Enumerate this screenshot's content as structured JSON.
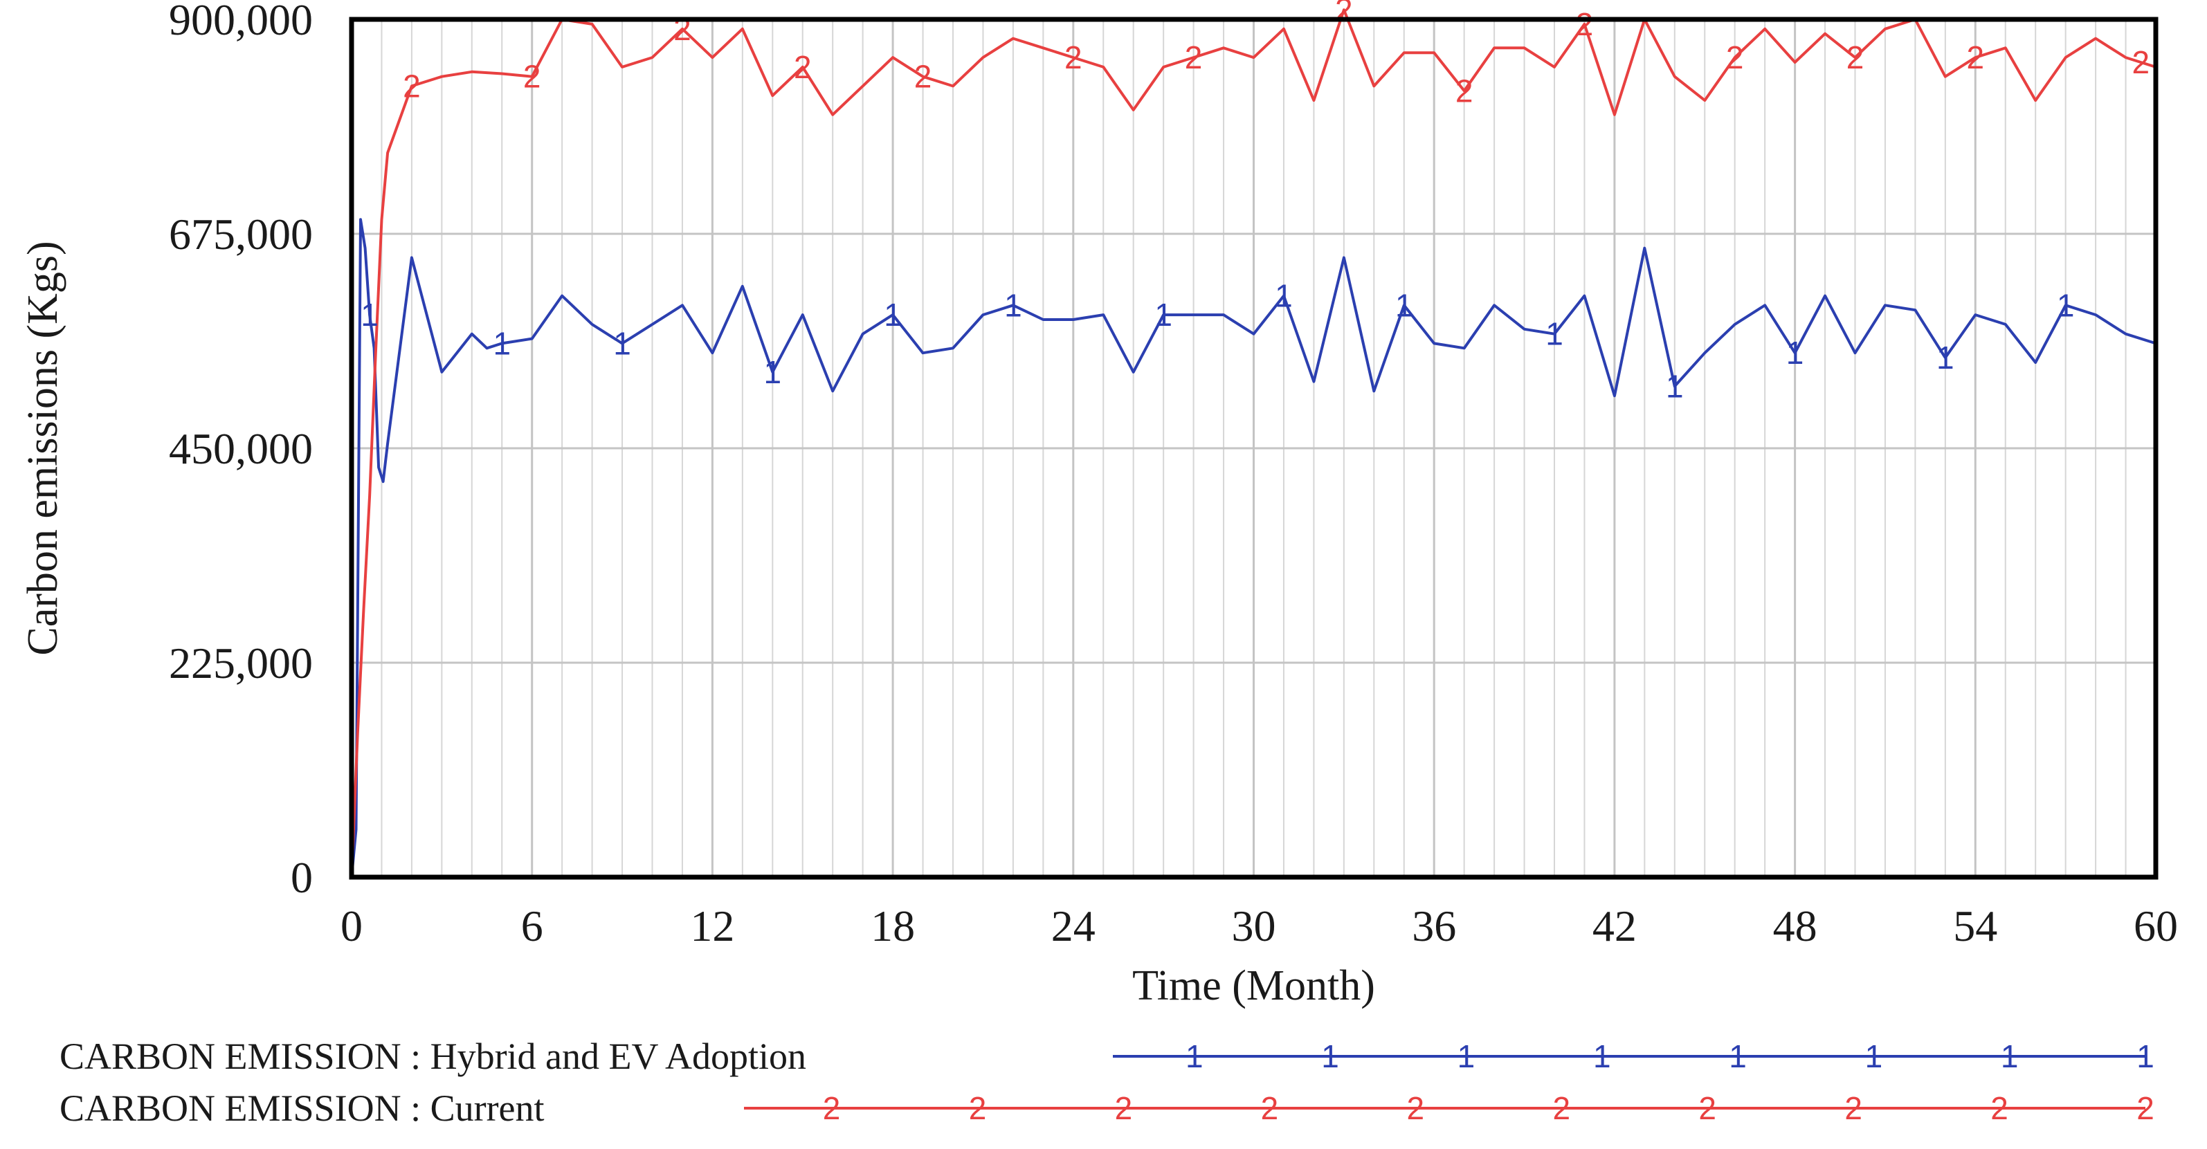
{
  "chart_data": {
    "type": "line",
    "title": "",
    "xlabel": "Time (Month)",
    "ylabel": "Carbon emissions (Kgs)",
    "xlim": [
      0,
      60
    ],
    "ylim": [
      0,
      900000
    ],
    "xticks": [
      0,
      6,
      12,
      18,
      24,
      30,
      36,
      42,
      48,
      54,
      60
    ],
    "xtick_labels": [
      "0",
      "6",
      "12",
      "18",
      "24",
      "30",
      "36",
      "42",
      "48",
      "54",
      "60"
    ],
    "yticks": [
      0,
      225000,
      450000,
      675000,
      900000
    ],
    "ytick_labels": [
      "0",
      "225,000",
      "450,000",
      "675,000",
      "900,000"
    ],
    "grid": true,
    "legend_position": "bottom",
    "series": [
      {
        "name": "CARBON EMISSION : Hybrid and EV Adoption",
        "marker": "1",
        "color": "#2b3fb0",
        "x": [
          0,
          0.15,
          0.3,
          0.45,
          0.6,
          0.75,
          0.9,
          1.05,
          1.2,
          2,
          3,
          4,
          4.5,
          5,
          6,
          7,
          8,
          9,
          10,
          11,
          12,
          13,
          14,
          15,
          16,
          17,
          18,
          19,
          20,
          21,
          22,
          23,
          24,
          25,
          26,
          27,
          28,
          29,
          30,
          31,
          32,
          33,
          34,
          35,
          36,
          37,
          38,
          39,
          40,
          41,
          42,
          43,
          44,
          45,
          46,
          47,
          48,
          49,
          50,
          51,
          52,
          53,
          54,
          55,
          56,
          57,
          58,
          59,
          60
        ],
        "values": [
          0,
          50000,
          690000,
          660000,
          590000,
          555000,
          430000,
          415000,
          455000,
          650000,
          530000,
          570000,
          555000,
          560000,
          565000,
          610000,
          580000,
          560000,
          580000,
          600000,
          550000,
          620000,
          530000,
          590000,
          510000,
          570000,
          590000,
          550000,
          555000,
          590000,
          600000,
          585000,
          585000,
          590000,
          530000,
          590000,
          590000,
          590000,
          570000,
          610000,
          520000,
          650000,
          510000,
          600000,
          560000,
          555000,
          600000,
          575000,
          570000,
          610000,
          505000,
          660000,
          515000,
          550000,
          580000,
          600000,
          550000,
          610000,
          550000,
          600000,
          595000,
          545000,
          590000,
          580000,
          540000,
          600000,
          590000,
          570000,
          560000
        ],
        "marker_x": [
          0.6,
          5,
          9,
          14,
          18,
          22,
          27,
          31,
          35,
          40,
          44,
          48,
          53,
          57
        ]
      },
      {
        "name": "CARBON EMISSION : Current",
        "marker": "2",
        "color": "#e84040",
        "x": [
          0,
          0.2,
          0.4,
          0.6,
          0.8,
          1.0,
          1.2,
          2,
          3,
          4,
          5,
          6,
          7,
          8,
          9,
          10,
          11,
          12,
          13,
          14,
          15,
          16,
          17,
          18,
          19,
          20,
          21,
          22,
          23,
          24,
          25,
          26,
          27,
          28,
          29,
          30,
          31,
          32,
          33,
          34,
          35,
          36,
          37,
          38,
          39,
          40,
          41,
          42,
          43,
          44,
          45,
          46,
          47,
          48,
          49,
          50,
          51,
          52,
          53,
          54,
          55,
          56,
          57,
          58,
          59,
          60
        ],
        "values": [
          0,
          150000,
          280000,
          400000,
          550000,
          690000,
          760000,
          830000,
          840000,
          845000,
          843000,
          840000,
          900000,
          895000,
          850000,
          860000,
          890000,
          860000,
          890000,
          820000,
          850000,
          800000,
          830000,
          860000,
          840000,
          830000,
          860000,
          880000,
          870000,
          860000,
          850000,
          805000,
          850000,
          860000,
          870000,
          860000,
          890000,
          815000,
          910000,
          830000,
          865000,
          865000,
          825000,
          870000,
          870000,
          850000,
          895000,
          800000,
          900000,
          840000,
          815000,
          860000,
          890000,
          855000,
          885000,
          860000,
          890000,
          900000,
          840000,
          860000,
          870000,
          815000,
          860000,
          880000,
          860000,
          850000
        ],
        "marker_x": [
          2,
          6,
          11,
          15,
          19,
          24,
          28,
          33,
          37,
          41,
          46,
          50,
          54,
          59.5
        ]
      }
    ]
  }
}
